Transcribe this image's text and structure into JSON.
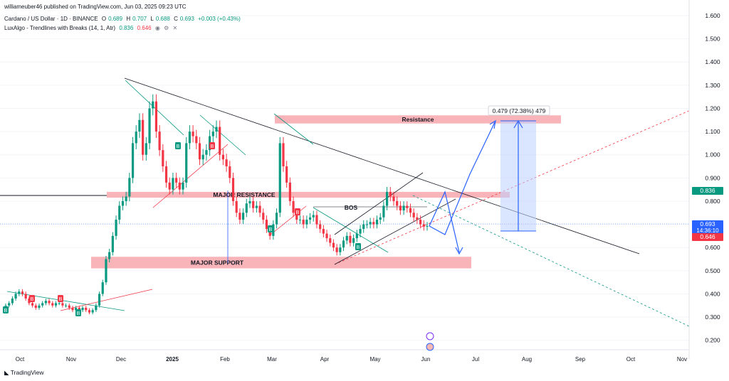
{
  "header": {
    "publisher": "williameuber46 published on TradingView.com, Jun 03, 2025 09:23 UTC",
    "symbol": "Cardano / US Dollar · 1D · BINANCE",
    "o_label": "O",
    "o": "0.689",
    "h_label": "H",
    "h": "0.707",
    "l_label": "L",
    "l": "0.688",
    "c_label": "C",
    "c": "0.693",
    "change": "+0.003 (+0.43%)",
    "indicator": "LuxAlgo - Trendlines with Breaks (14, 1, Atr)",
    "ind_v1": "0.836",
    "ind_v2": "0.646",
    "icons": [
      "eye-icon",
      "gear-icon",
      "close-icon"
    ]
  },
  "footer": {
    "logo": "TradingView"
  },
  "colors": {
    "up": "#089981",
    "down": "#f23645",
    "zone": "#f7a7ad",
    "projection": "#2962ff",
    "measure": "#bbd0ff",
    "trend": "#131722"
  },
  "chart_data": {
    "type": "candlestick",
    "y_axis": {
      "ticks": [
        "1.600",
        "1.500",
        "1.400",
        "1.300",
        "1.200",
        "1.100",
        "1.000",
        "0.900",
        "0.800",
        "0.700",
        "0.600",
        "0.500",
        "0.400",
        "0.300",
        "0.200"
      ],
      "range": [
        0.15,
        1.65
      ]
    },
    "x_axis": {
      "ticks": [
        "Oct",
        "Nov",
        "Dec",
        "2025",
        "Feb",
        "Mar",
        "Apr",
        "May",
        "Jun",
        "Jul",
        "Aug",
        "Sep",
        "Oct",
        "Nov"
      ]
    },
    "price_labels": [
      {
        "value": "0.836",
        "color": "#089981"
      },
      {
        "value": "0.693",
        "sub": "14:36:10",
        "color": "#2962ff"
      },
      {
        "value": "0.646",
        "color": "#f23645"
      }
    ],
    "zones": [
      {
        "label": "Resistance",
        "y_top": 1.17,
        "y_bottom": 1.135
      },
      {
        "label": "MAJOR RESISTANCE",
        "y_top": 0.84,
        "y_bottom": 0.815
      },
      {
        "label": "MAJOR SUPPORT",
        "y_top": 0.56,
        "y_bottom": 0.51
      }
    ],
    "annotations": [
      "BOS",
      "0.479 (72.38%) 479"
    ],
    "signals": {
      "buy": "B",
      "sell": "B"
    },
    "series": [
      {
        "name": "ADA/USD",
        "closes": [
          0.35,
          0.36,
          0.38,
          0.4,
          0.41,
          0.4,
          0.38,
          0.36,
          0.35,
          0.34,
          0.35,
          0.36,
          0.37,
          0.36,
          0.35,
          0.36,
          0.36,
          0.35,
          0.35,
          0.34,
          0.33,
          0.34,
          0.33,
          0.34,
          0.33,
          0.32,
          0.33,
          0.35,
          0.4,
          0.45,
          0.55,
          0.58,
          0.65,
          0.72,
          0.78,
          0.8,
          0.82,
          0.9,
          1.05,
          1.1,
          1.15,
          1.0,
          1.05,
          1.2,
          1.23,
          1.1,
          1.02,
          0.95,
          0.88,
          0.85,
          0.9,
          0.88,
          0.85,
          0.88,
          1.05,
          1.1,
          1.08,
          1.05,
          0.98,
          1.0,
          1.02,
          1.08,
          1.1,
          1.12,
          1.0,
          0.98,
          0.95,
          0.9,
          0.8,
          0.75,
          0.72,
          0.75,
          0.79,
          0.8,
          0.77,
          0.78,
          0.75,
          0.72,
          0.68,
          0.65,
          0.7,
          0.75,
          1.05,
          0.95,
          0.88,
          0.8,
          0.75,
          0.72,
          0.72,
          0.7,
          0.72,
          0.73,
          0.74,
          0.7,
          0.68,
          0.66,
          0.64,
          0.62,
          0.6,
          0.58,
          0.6,
          0.63,
          0.65,
          0.62,
          0.64,
          0.66,
          0.68,
          0.7,
          0.7,
          0.71,
          0.7,
          0.72,
          0.73,
          0.78,
          0.84,
          0.82,
          0.8,
          0.78,
          0.76,
          0.78,
          0.77,
          0.75,
          0.73,
          0.72,
          0.7,
          0.69,
          0.693
        ]
      }
    ]
  }
}
